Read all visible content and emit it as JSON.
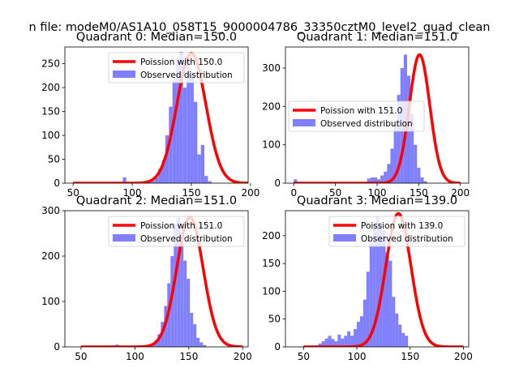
{
  "figure": {
    "suptitle": "n file: modeM0/AS1A10_058T15_9000004786_33350cztM0_level2_quad_clean"
  },
  "colors": {
    "bars": "#8080ff",
    "curve": "#ff0000",
    "axis": "#000000"
  },
  "chart_data": [
    {
      "type": "bar",
      "title": "Quadrant 0: Median=150.0",
      "xlim": [
        43,
        198
      ],
      "ylim": [
        0,
        285
      ],
      "xticks": [
        50,
        100,
        150,
        200
      ],
      "yticks": [
        0,
        50,
        100,
        150,
        200,
        250
      ],
      "legend": {
        "position": "top-right",
        "line_label": "Poission with 150.0",
        "bar_label": "Observed distribution"
      },
      "poisson_mean": 150.0,
      "poisson_peak": 272,
      "bin_start": 50,
      "bin_width": 3,
      "values": [
        0,
        0,
        0,
        0,
        0,
        0,
        0,
        0,
        0,
        0,
        0,
        0,
        0,
        0,
        12,
        0,
        0,
        0,
        0,
        0,
        0,
        2,
        5,
        12,
        30,
        48,
        100,
        160,
        215,
        260,
        275,
        200,
        260,
        225,
        170,
        60,
        80,
        15,
        4,
        0,
        0,
        0,
        0,
        0,
        0,
        0,
        0,
        0,
        0,
        0,
        0,
        0
      ]
    },
    {
      "type": "bar",
      "title": "Quadrant 1: Median=151.0",
      "xlim": [
        -10,
        210
      ],
      "ylim": [
        0,
        355
      ],
      "xticks": [
        0,
        50,
        100,
        150,
        200
      ],
      "yticks": [
        0,
        100,
        200,
        300
      ],
      "legend": {
        "position": "center-right",
        "line_label": "Poission with 151.0",
        "bar_label": "Observed distribution"
      },
      "poisson_mean": 151.0,
      "poisson_peak": 335,
      "bin_start": 0,
      "bin_width": 4,
      "values": [
        10,
        0,
        0,
        0,
        0,
        0,
        0,
        0,
        0,
        0,
        0,
        0,
        0,
        0,
        0,
        0,
        0,
        0,
        0,
        0,
        0,
        0,
        12,
        15,
        15,
        10,
        20,
        30,
        50,
        90,
        150,
        230,
        300,
        335,
        280,
        180,
        100,
        40,
        15,
        5,
        0,
        0,
        0,
        0,
        0,
        0,
        0,
        0,
        0,
        0,
        0
      ]
    },
    {
      "type": "bar",
      "title": "Quadrant 2: Median=151.0",
      "xlim": [
        35,
        205
      ],
      "ylim": [
        0,
        300
      ],
      "xticks": [
        50,
        100,
        150,
        200
      ],
      "yticks": [
        0,
        100,
        200,
        300
      ],
      "legend": {
        "position": "top-right",
        "line_label": "Poission with 151.0",
        "bar_label": "Observed distribution"
      },
      "poisson_mean": 151.0,
      "poisson_peak": 285,
      "bin_start": 40,
      "bin_width": 3,
      "values": [
        0,
        0,
        0,
        0,
        0,
        0,
        0,
        0,
        0,
        0,
        0,
        0,
        0,
        0,
        5,
        0,
        0,
        0,
        0,
        0,
        0,
        0,
        0,
        3,
        5,
        8,
        15,
        28,
        55,
        90,
        140,
        200,
        270,
        285,
        250,
        190,
        150,
        75,
        50,
        20,
        10,
        4,
        0,
        0,
        0,
        0,
        0,
        0,
        0,
        0,
        0,
        0
      ]
    },
    {
      "type": "bar",
      "title": "Quadrant 3: Median=139.0",
      "xlim": [
        33,
        205
      ],
      "ylim": [
        0,
        245
      ],
      "xticks": [
        50,
        100,
        150,
        200
      ],
      "yticks": [
        0,
        50,
        100,
        150,
        200
      ],
      "legend": {
        "position": "top-right",
        "line_label": "Poission with 139.0",
        "bar_label": "Observed distribution"
      },
      "poisson_mean": 139.0,
      "poisson_peak": 240,
      "bin_start": 40,
      "bin_width": 3,
      "values": [
        0,
        0,
        0,
        0,
        0,
        0,
        0,
        3,
        6,
        10,
        15,
        20,
        14,
        10,
        22,
        15,
        20,
        28,
        20,
        32,
        45,
        55,
        85,
        135,
        185,
        220,
        235,
        225,
        210,
        170,
        155,
        90,
        60,
        40,
        25,
        20,
        0,
        0,
        0,
        0,
        0,
        0,
        0,
        0,
        0,
        0,
        0,
        0,
        0,
        0,
        0,
        0
      ]
    }
  ]
}
